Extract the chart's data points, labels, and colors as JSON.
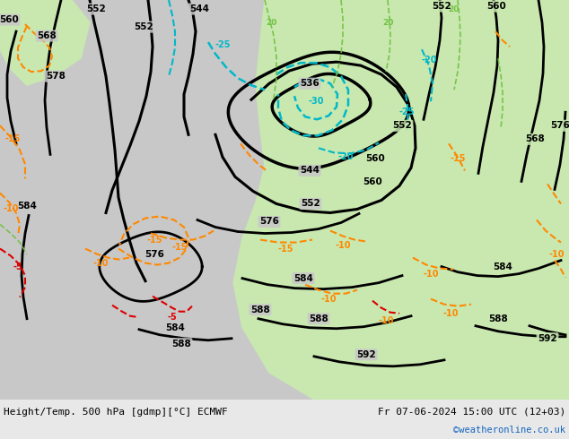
{
  "title_left": "Height/Temp. 500 hPa [gdmp][°C] ECMWF",
  "title_right": "Fr 07-06-2024 15:00 UTC (12+03)",
  "copyright": "©weatheronline.co.uk",
  "bg_gray": "#c8c8c8",
  "bg_green": "#c8e8b0",
  "height_color": "#000000",
  "temp_orange_color": "#ff8800",
  "temp_red_color": "#dd0000",
  "cyan_color": "#00b8c8",
  "green_color": "#70c040",
  "title_color": "#000000",
  "copyright_color": "#1565c0",
  "figsize": [
    6.34,
    4.9
  ],
  "dpi": 100
}
